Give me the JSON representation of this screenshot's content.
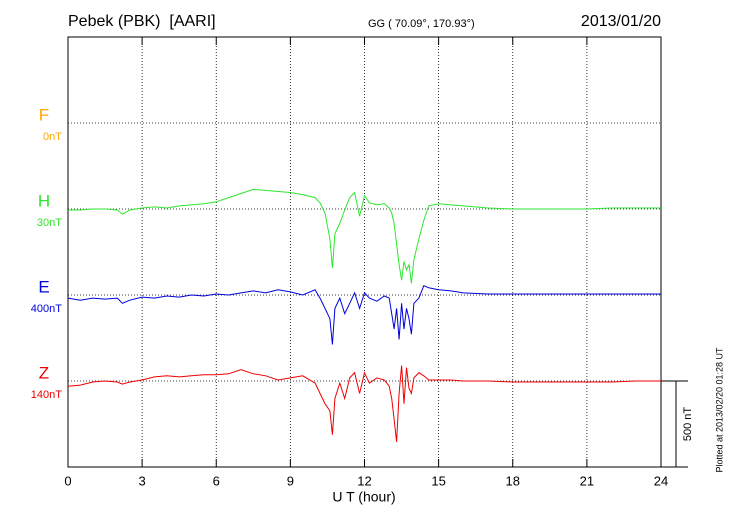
{
  "chart_data": {
    "type": "line",
    "title": "Pebek (PBK)  [AARI]",
    "subtitle": "GG ( 70.09°, 170.93°)",
    "date": "2013/01/20",
    "xlabel": "U T (hour)",
    "footnote": "Plotted at 2013/02/20 01:28 UT",
    "scale_bar": {
      "value": 500,
      "label": "500 nT"
    },
    "xlim": [
      0,
      24
    ],
    "xticks": [
      0,
      3,
      6,
      9,
      12,
      15,
      18,
      21,
      24
    ],
    "grid": true,
    "x": [
      0,
      0.5,
      1,
      1.5,
      2,
      2.2,
      2.5,
      3,
      3.5,
      4,
      4.5,
      5,
      5.5,
      6,
      6.5,
      7,
      7.5,
      8,
      8.5,
      9,
      9.5,
      10,
      10.2,
      10.4,
      10.6,
      10.7,
      10.8,
      11,
      11.2,
      11.4,
      11.6,
      11.8,
      12,
      12.2,
      12.5,
      12.8,
      13,
      13.1,
      13.2,
      13.3,
      13.4,
      13.5,
      13.6,
      13.7,
      13.8,
      13.9,
      14,
      14.2,
      14.4,
      14.6,
      15,
      15.5,
      16,
      17,
      18,
      19,
      20,
      21,
      22,
      23,
      24
    ],
    "series": [
      {
        "name": "F",
        "offset_label": "0nT",
        "color": "#ffa500",
        "values": [
          null,
          null,
          null,
          null,
          null,
          null,
          null,
          null,
          null,
          null,
          null,
          null,
          null,
          null,
          null,
          null,
          null,
          null,
          null,
          null,
          null,
          null,
          null,
          null,
          null,
          null,
          null,
          null,
          null,
          null,
          null,
          null,
          null,
          null,
          null,
          null,
          null,
          null,
          null,
          null,
          null,
          null,
          null,
          null,
          null,
          null,
          null,
          null,
          null,
          null,
          null,
          null,
          null,
          null,
          null,
          null,
          null,
          null,
          null,
          null,
          null
        ]
      },
      {
        "name": "H",
        "offset_label": "30nT",
        "color": "#2ee62e",
        "values": [
          -6,
          -6,
          0,
          0,
          -6,
          -30,
          -6,
          6,
          12,
          6,
          18,
          24,
          30,
          42,
          66,
          90,
          114,
          108,
          102,
          96,
          84,
          66,
          36,
          -24,
          -174,
          -342,
          -144,
          -84,
          -6,
          66,
          96,
          -42,
          78,
          36,
          24,
          30,
          6,
          -24,
          -84,
          -204,
          -324,
          -414,
          -306,
          -354,
          -324,
          -432,
          -294,
          -174,
          -66,
          18,
          30,
          24,
          18,
          6,
          0,
          0,
          0,
          0,
          6,
          6,
          6
        ]
      },
      {
        "name": "E",
        "offset_label": "400nT",
        "color": "#0000dd",
        "values": [
          -18,
          -30,
          -18,
          -24,
          -18,
          -48,
          -30,
          -12,
          -18,
          -6,
          -12,
          0,
          -6,
          6,
          0,
          12,
          24,
          12,
          30,
          18,
          0,
          30,
          -18,
          -78,
          -138,
          -288,
          -78,
          -18,
          -108,
          -48,
          12,
          -78,
          12,
          -18,
          -36,
          -6,
          -18,
          -108,
          -198,
          -78,
          -258,
          -48,
          -198,
          -78,
          -138,
          -228,
          -48,
          -18,
          54,
          42,
          30,
          24,
          12,
          6,
          6,
          6,
          6,
          6,
          6,
          6,
          6
        ]
      },
      {
        "name": "Z",
        "offset_label": "140nT",
        "color": "#ee0000",
        "values": [
          -30,
          -24,
          -6,
          0,
          -6,
          -18,
          -6,
          6,
          24,
          30,
          24,
          30,
          36,
          36,
          42,
          66,
          42,
          30,
          6,
          18,
          30,
          -12,
          -72,
          -132,
          -174,
          -312,
          -102,
          -12,
          -102,
          18,
          48,
          -72,
          48,
          -12,
          18,
          6,
          -30,
          -102,
          -222,
          -354,
          -72,
          90,
          -132,
          78,
          -42,
          -72,
          18,
          48,
          30,
          6,
          6,
          6,
          0,
          0,
          -6,
          -6,
          -6,
          -6,
          -6,
          0,
          0
        ]
      }
    ]
  }
}
